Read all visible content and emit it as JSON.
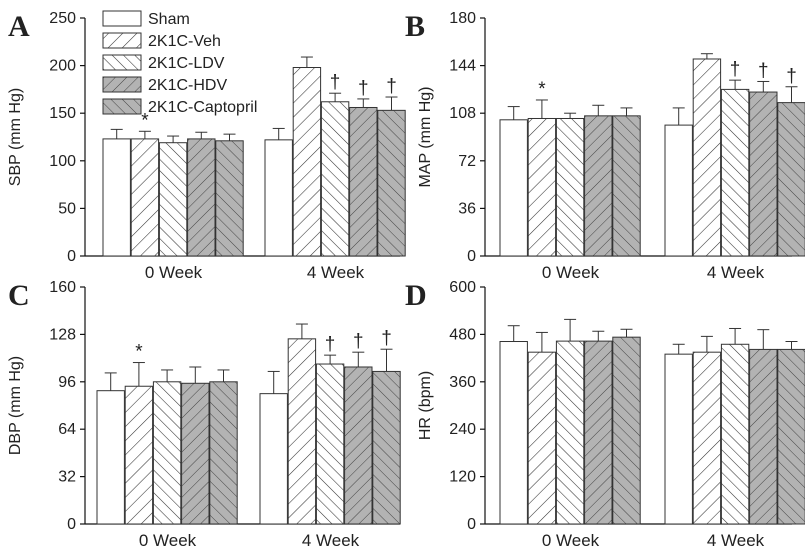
{
  "legend": {
    "entries": [
      "Sham",
      "2K1C-Veh",
      "2K1C-LDV",
      "2K1C-HDV",
      "2K1C-Captopril"
    ]
  },
  "colors": {
    "bar_stroke": "#333333",
    "gray_fill": "#b3b3b3",
    "white_fill": "#ffffff",
    "axis": "#111111"
  },
  "chart_data": [
    {
      "type": "bar",
      "panel_label": "A",
      "ylabel": "SBP (mm Hg)",
      "ylim": [
        0,
        250
      ],
      "yticks": [
        0,
        50,
        100,
        150,
        200,
        250
      ],
      "categories": [
        "0 Week",
        "4 Week"
      ],
      "series": [
        {
          "name": "Sham",
          "values": [
            123,
            122
          ],
          "errors": [
            10,
            12
          ]
        },
        {
          "name": "2K1C-Veh",
          "values": [
            123,
            198
          ],
          "errors": [
            8,
            11
          ]
        },
        {
          "name": "2K1C-LDV",
          "values": [
            119,
            162
          ],
          "errors": [
            7,
            9
          ]
        },
        {
          "name": "2K1C-HDV",
          "values": [
            123,
            156
          ],
          "errors": [
            7,
            9
          ]
        },
        {
          "name": "2K1C-Captopril",
          "values": [
            121,
            153
          ],
          "errors": [
            7,
            14
          ]
        }
      ],
      "annotations": [
        [
          "",
          ""
        ],
        [
          "*",
          ""
        ],
        [
          "",
          "†"
        ],
        [
          "",
          "†"
        ],
        [
          "",
          "†"
        ]
      ]
    },
    {
      "type": "bar",
      "panel_label": "B",
      "ylabel": "MAP (mm Hg)",
      "ylim": [
        0,
        180
      ],
      "yticks": [
        0,
        36,
        72,
        108,
        144,
        180
      ],
      "categories": [
        "0 Week",
        "4 Week"
      ],
      "series": [
        {
          "name": "Sham",
          "values": [
            103,
            99
          ],
          "errors": [
            10,
            13
          ]
        },
        {
          "name": "2K1C-Veh",
          "values": [
            104,
            149
          ],
          "errors": [
            14,
            4
          ]
        },
        {
          "name": "2K1C-LDV",
          "values": [
            104,
            126
          ],
          "errors": [
            4,
            7
          ]
        },
        {
          "name": "2K1C-HDV",
          "values": [
            106,
            124
          ],
          "errors": [
            8,
            8
          ]
        },
        {
          "name": "2K1C-Captopril",
          "values": [
            106,
            116
          ],
          "errors": [
            6,
            12
          ]
        }
      ],
      "annotations": [
        [
          "",
          ""
        ],
        [
          "*",
          ""
        ],
        [
          "",
          "†"
        ],
        [
          "",
          "†"
        ],
        [
          "",
          "†"
        ]
      ]
    },
    {
      "type": "bar",
      "panel_label": "C",
      "ylabel": "DBP (mm Hg)",
      "ylim": [
        0,
        160
      ],
      "yticks": [
        0,
        32,
        64,
        96,
        128,
        160
      ],
      "categories": [
        "0 Week",
        "4 Week"
      ],
      "series": [
        {
          "name": "Sham",
          "values": [
            90,
            88
          ],
          "errors": [
            12,
            15
          ]
        },
        {
          "name": "2K1C-Veh",
          "values": [
            93,
            125
          ],
          "errors": [
            16,
            10
          ]
        },
        {
          "name": "2K1C-LDV",
          "values": [
            96,
            108
          ],
          "errors": [
            8,
            6
          ]
        },
        {
          "name": "2K1C-HDV",
          "values": [
            95,
            106
          ],
          "errors": [
            11,
            10
          ]
        },
        {
          "name": "2K1C-Captopril",
          "values": [
            96,
            103
          ],
          "errors": [
            8,
            15
          ]
        }
      ],
      "annotations": [
        [
          "",
          ""
        ],
        [
          "*",
          ""
        ],
        [
          "",
          "†"
        ],
        [
          "",
          "†"
        ],
        [
          "",
          "†"
        ]
      ]
    },
    {
      "type": "bar",
      "panel_label": "D",
      "ylabel": "HR (bpm)",
      "ylim": [
        0,
        600
      ],
      "yticks": [
        0,
        120,
        240,
        360,
        480,
        600
      ],
      "categories": [
        "0 Week",
        "4 Week"
      ],
      "series": [
        {
          "name": "Sham",
          "values": [
            462,
            430
          ],
          "errors": [
            40,
            25
          ]
        },
        {
          "name": "2K1C-Veh",
          "values": [
            435,
            435
          ],
          "errors": [
            50,
            40
          ]
        },
        {
          "name": "2K1C-LDV",
          "values": [
            463,
            455
          ],
          "errors": [
            55,
            40
          ]
        },
        {
          "name": "2K1C-HDV",
          "values": [
            463,
            442
          ],
          "errors": [
            25,
            50
          ]
        },
        {
          "name": "2K1C-Captopril",
          "values": [
            473,
            442
          ],
          "errors": [
            20,
            20
          ]
        }
      ],
      "annotations": [
        [
          "",
          ""
        ],
        [
          "",
          ""
        ],
        [
          "",
          ""
        ],
        [
          "",
          ""
        ],
        [
          "",
          ""
        ]
      ]
    }
  ]
}
